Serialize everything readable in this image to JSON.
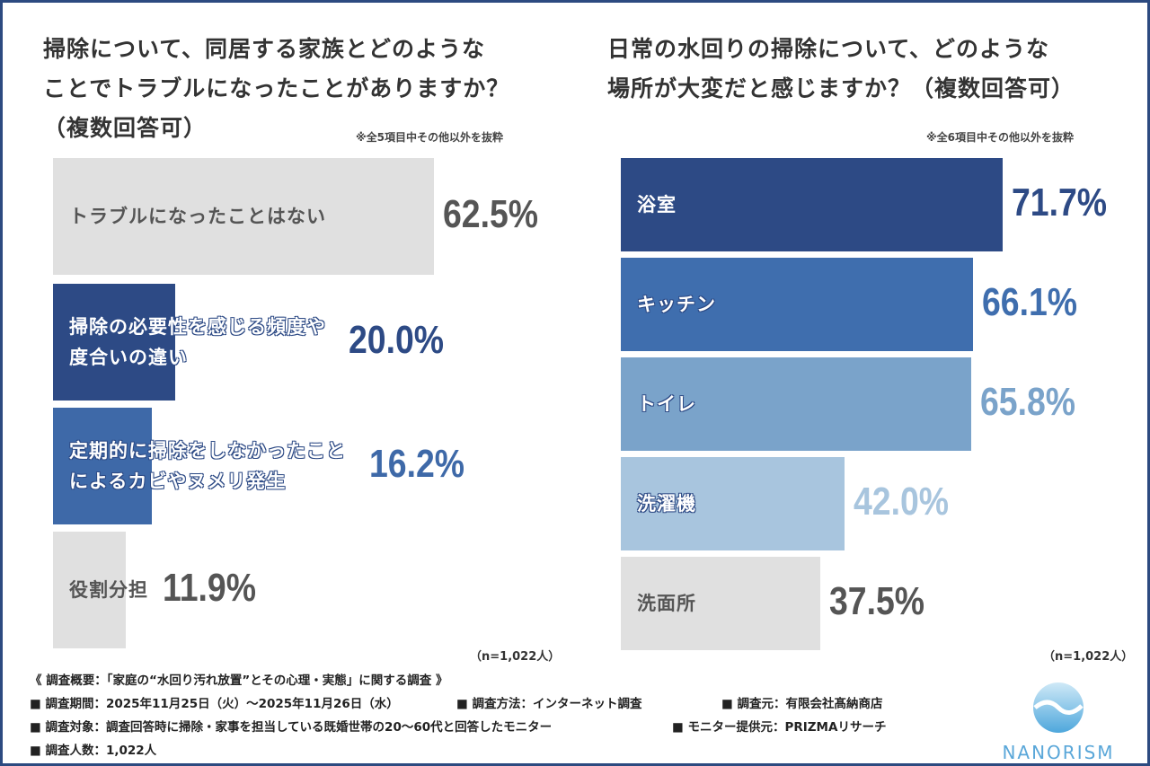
{
  "chart_data": [
    {
      "type": "bar",
      "orientation": "horizontal",
      "title": "掃除について、同居する家族とどのようなことでトラブルになったことがありますか？（複数回答可）",
      "title_lines": [
        "掃除について、同居する家族とどのような",
        "ことでトラブルになったことがありますか？",
        "（複数回答可）"
      ],
      "note": "※全5項目中その他以外を抜粋",
      "n": "（n=1,022人）",
      "categories": [
        "トラブルになったことはない",
        "掃除の必要性を感じる頻度や度合いの違い",
        "定期的に掃除をしなかったことによるカビやヌメリ発生",
        "役割分担"
      ],
      "label_lines": [
        [
          "トラブルになったことはない"
        ],
        [
          "掃除の必要性を感じる頻度や",
          "度合いの違い"
        ],
        [
          "定期的に掃除をしなかったこと",
          "によるカビやヌメリ発生"
        ],
        [
          "役割分担"
        ]
      ],
      "values": [
        62.5,
        20.0,
        16.2,
        11.9
      ],
      "value_labels": [
        "62.5%",
        "20.0%",
        "16.2%",
        "11.9%"
      ],
      "colors": [
        "#e0e0e0",
        "#2d4a85",
        "#3e69a8",
        "#e0e0e0"
      ],
      "value_colors": [
        "#555555",
        "#2d4a85",
        "#3e69a8",
        "#555555"
      ]
    },
    {
      "type": "bar",
      "orientation": "horizontal",
      "title": "日常の水回りの掃除について、どのような場所が大変だと感じますか？（複数回答可）",
      "title_lines": [
        "日常の水回りの掃除について、どのような",
        "場所が大変だと感じますか？（複数回答可）"
      ],
      "note": "※全6項目中その他以外を抜粋",
      "n": "（n=1,022人）",
      "categories": [
        "浴室",
        "キッチン",
        "トイレ",
        "洗濯機",
        "洗面所"
      ],
      "label_lines": [
        [
          "浴室"
        ],
        [
          "キッチン"
        ],
        [
          "トイレ"
        ],
        [
          "洗濯機"
        ],
        [
          "洗面所"
        ]
      ],
      "values": [
        71.7,
        66.1,
        65.8,
        42.0,
        37.5
      ],
      "value_labels": [
        "71.7%",
        "66.1%",
        "65.8%",
        "42.0%",
        "37.5%"
      ],
      "colors": [
        "#2d4a85",
        "#3f6eae",
        "#7aa3ca",
        "#a8c5de",
        "#e0e0e0"
      ],
      "value_colors": [
        "#2d4a85",
        "#3f6eae",
        "#7aa3ca",
        "#a8c5de",
        "#555555"
      ]
    }
  ],
  "footer": {
    "heading": "《 調査概要：「家庭の“水回り汚れ放置”とその心理・実態」に関する調査 》",
    "period": "■ 調査期間：2025年11月25日（火）～2025年11月26日（水）",
    "method": "■ 調査方法：インターネット調査",
    "source": "■ 調査元：有限会社髙納商店",
    "target": "■ 調査対象：調査回答時に掃除・家事を担当している既婚世帯の20～60代と回答したモニター",
    "provider": "■ モニター提供元：PRIZMAリサーチ",
    "count": "■ 調査人数：1,022人"
  },
  "logo": {
    "text": "NANORISM",
    "icon": "wave-drop-logo-icon"
  }
}
